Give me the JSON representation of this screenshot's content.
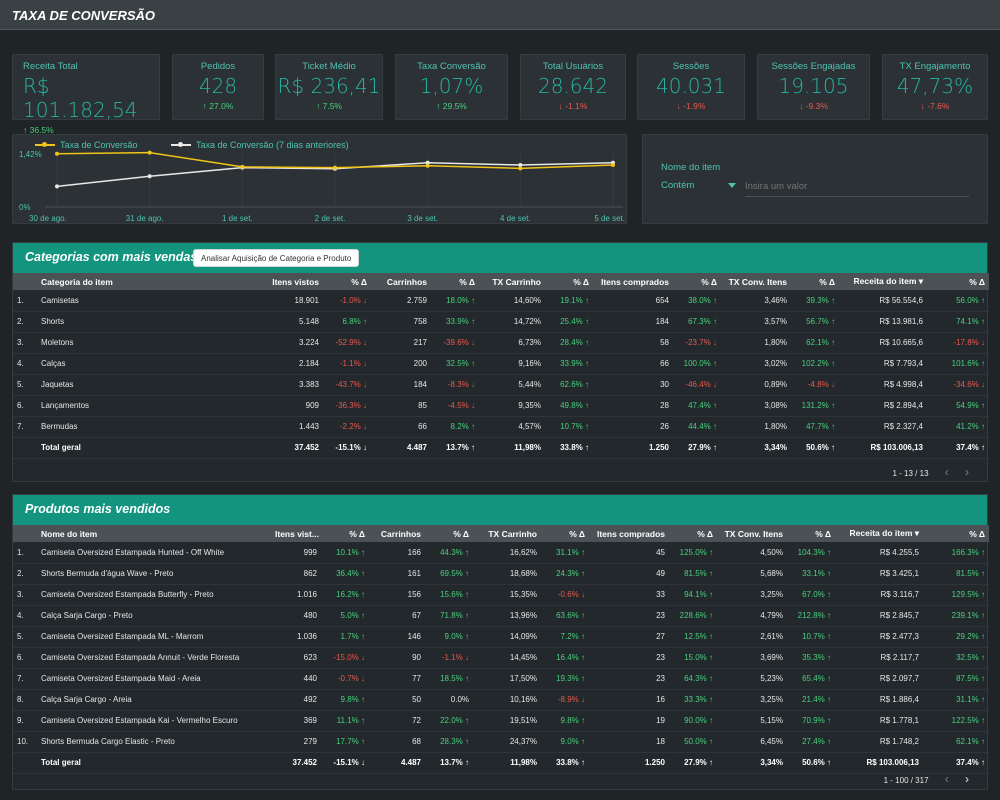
{
  "header": {
    "title": "TAXA DE CONVERSÃO"
  },
  "kpis": [
    {
      "label": "Receita Total",
      "value": "R$ 101.182,54",
      "delta": "↑ 36.5%",
      "dir": "up"
    },
    {
      "label": "Pedidos",
      "value": "428",
      "delta": "↑ 27.0%",
      "dir": "up"
    },
    {
      "label": "Ticket Médio",
      "value": "R$ 236,41",
      "delta": "↑ 7.5%",
      "dir": "up"
    },
    {
      "label": "Taxa Conversão",
      "value": "1,07%",
      "delta": "↑ 29.5%",
      "dir": "up"
    },
    {
      "label": "Total Usuários",
      "value": "28.642",
      "delta": "↓ -1.1%",
      "dir": "down"
    },
    {
      "label": "Sessões",
      "value": "40.031",
      "delta": "↓ -1.9%",
      "dir": "down"
    },
    {
      "label": "Sessões Engajadas",
      "value": "19.105",
      "delta": "↓ -9.3%",
      "dir": "down"
    },
    {
      "label": "TX Engajamento",
      "value": "47,73%",
      "delta": "↓ -7.6%",
      "dir": "down"
    }
  ],
  "chart_data": {
    "type": "line",
    "x": [
      "30 de ago.",
      "31 de ago.",
      "1 de set.",
      "2 de set.",
      "3 de set.",
      "4 de set.",
      "5 de set."
    ],
    "series": [
      {
        "name": "Taxa de Conversão",
        "color": "#f0c419",
        "values": [
          1.42,
          1.45,
          1.07,
          1.05,
          1.1,
          1.03,
          1.12
        ]
      },
      {
        "name": "Taxa de Conversão (7 dias anteriores)",
        "color": "#e8e8e8",
        "values": [
          0.55,
          0.82,
          1.05,
          1.02,
          1.18,
          1.12,
          1.18
        ]
      }
    ],
    "ytick_labels": [
      "1,42%",
      "0%"
    ],
    "ylim": [
      0,
      1.6
    ],
    "grid": true,
    "legend": "top-left"
  },
  "filter": {
    "label": "Nome do item",
    "operator": "Contém",
    "placeholder": "Insira um valor"
  },
  "categories_table": {
    "title": "Categorias com mais vendas",
    "button": "Analisar Aquisição de Categoria e Produto",
    "columns": [
      "Categoria do item",
      "Itens vistos",
      "% Δ",
      "Carrinhos",
      "% Δ",
      "TX Carrinho",
      "% Δ",
      "Itens comprados",
      "% Δ",
      "TX Conv. Itens",
      "% Δ",
      "Receita do item ▾",
      "% Δ"
    ],
    "rows": [
      {
        "n": "1.",
        "cells": [
          "Camisetas",
          "18.901",
          "-1.0% ↓",
          "2.759",
          "18.0% ↑",
          "14,60%",
          "19.1% ↑",
          "654",
          "38.0% ↑",
          "3,46%",
          "39.3% ↑",
          "R$ 56.554,6",
          "56.0% ↑"
        ]
      },
      {
        "n": "2.",
        "cells": [
          "Shorts",
          "5.148",
          "6.8% ↑",
          "758",
          "33.9% ↑",
          "14,72%",
          "25.4% ↑",
          "184",
          "67.3% ↑",
          "3,57%",
          "56.7% ↑",
          "R$ 13.981,6",
          "74.1% ↑"
        ]
      },
      {
        "n": "3.",
        "cells": [
          "Moletons",
          "3.224",
          "-52.9% ↓",
          "217",
          "-39.6% ↓",
          "6,73%",
          "28.4% ↑",
          "58",
          "-23.7% ↓",
          "1,80%",
          "62.1% ↑",
          "R$ 10.665,6",
          "-17.8% ↓"
        ]
      },
      {
        "n": "4.",
        "cells": [
          "Calças",
          "2.184",
          "-1.1% ↓",
          "200",
          "32.5% ↑",
          "9,16%",
          "33.9% ↑",
          "66",
          "100.0% ↑",
          "3,02%",
          "102.2% ↑",
          "R$ 7.793,4",
          "101.6% ↑"
        ]
      },
      {
        "n": "5.",
        "cells": [
          "Jaquetas",
          "3.383",
          "-43.7% ↓",
          "184",
          "-8.3% ↓",
          "5,44%",
          "62.6% ↑",
          "30",
          "-46.4% ↓",
          "0,89%",
          "-4.8% ↓",
          "R$ 4.998,4",
          "-34.6% ↓"
        ]
      },
      {
        "n": "6.",
        "cells": [
          "Lançamentos",
          "909",
          "-36.3% ↓",
          "85",
          "-4.5% ↓",
          "9,35%",
          "49.8% ↑",
          "28",
          "47.4% ↑",
          "3,08%",
          "131.2% ↑",
          "R$ 2.894,4",
          "54.9% ↑"
        ]
      },
      {
        "n": "7.",
        "cells": [
          "Bermudas",
          "1.443",
          "-2.2% ↓",
          "66",
          "8.2% ↑",
          "4,57%",
          "10.7% ↑",
          "26",
          "44.4% ↑",
          "1,80%",
          "47.7% ↑",
          "R$ 2.327,4",
          "41.2% ↑"
        ]
      }
    ],
    "total": [
      "Total geral",
      "37.452",
      "-15.1% ↓",
      "4.487",
      "13.7% ↑",
      "11,98%",
      "33.8% ↑",
      "1.250",
      "27.9% ↑",
      "3,34%",
      "50.6% ↑",
      "R$ 103.006,13",
      "37.4% ↑"
    ],
    "pager": "1 - 13 / 13",
    "prev": "‹",
    "next": "›"
  },
  "products_table": {
    "title": "Produtos mais vendidos",
    "columns": [
      "Nome do item",
      "Itens vist...",
      "% Δ",
      "Carrinhos",
      "% Δ",
      "TX Carrinho",
      "% Δ",
      "Itens comprados",
      "% Δ",
      "TX Conv. Itens",
      "% Δ",
      "Receita do item ▾",
      "% Δ"
    ],
    "rows": [
      {
        "n": "1.",
        "cells": [
          "Camiseta Oversized Estampada Hunted - Off White",
          "999",
          "10.1% ↑",
          "166",
          "44.3% ↑",
          "16,62%",
          "31.1% ↑",
          "45",
          "125.0% ↑",
          "4,50%",
          "104.3% ↑",
          "R$ 4.255,5",
          "166.3% ↑"
        ]
      },
      {
        "n": "2.",
        "cells": [
          "Shorts Bermuda d'água Wave - Preto",
          "862",
          "36.4% ↑",
          "161",
          "69.5% ↑",
          "18,68%",
          "24.3% ↑",
          "49",
          "81.5% ↑",
          "5,68%",
          "33.1% ↑",
          "R$ 3.425,1",
          "81.5% ↑"
        ]
      },
      {
        "n": "3.",
        "cells": [
          "Camiseta Oversized Estampada Butterfly - Preto",
          "1.016",
          "16.2% ↑",
          "156",
          "15.6% ↑",
          "15,35%",
          "-0.6% ↓",
          "33",
          "94.1% ↑",
          "3,25%",
          "67.0% ↑",
          "R$ 3.116,7",
          "129.5% ↑"
        ]
      },
      {
        "n": "4.",
        "cells": [
          "Calça Sarja Cargo - Preto",
          "480",
          "5.0% ↑",
          "67",
          "71.8% ↑",
          "13,96%",
          "63.6% ↑",
          "23",
          "228.6% ↑",
          "4,79%",
          "212.8% ↑",
          "R$ 2.845,7",
          "239.1% ↑"
        ]
      },
      {
        "n": "5.",
        "cells": [
          "Camiseta Oversized Estampada ML - Marrom",
          "1.036",
          "1.7% ↑",
          "146",
          "9.0% ↑",
          "14,09%",
          "7.2% ↑",
          "27",
          "12.5% ↑",
          "2,61%",
          "10.7% ↑",
          "R$ 2.477,3",
          "29.2% ↑"
        ]
      },
      {
        "n": "6.",
        "cells": [
          "Camiseta Oversized Estampada Annuit - Verde Floresta",
          "623",
          "-15.0% ↓",
          "90",
          "-1.1% ↓",
          "14,45%",
          "16.4% ↑",
          "23",
          "15.0% ↑",
          "3,69%",
          "35.3% ↑",
          "R$ 2.117,7",
          "32.5% ↑"
        ]
      },
      {
        "n": "7.",
        "cells": [
          "Camiseta Oversized Estampada Maid - Areia",
          "440",
          "-0.7% ↓",
          "77",
          "18.5% ↑",
          "17,50%",
          "19.3% ↑",
          "23",
          "64.3% ↑",
          "5,23%",
          "65.4% ↑",
          "R$ 2.097,7",
          "87.5% ↑"
        ]
      },
      {
        "n": "8.",
        "cells": [
          "Calça Sarja Cargo - Areia",
          "492",
          "9.8% ↑",
          "50",
          "0.0%",
          "10,16%",
          "-8.9% ↓",
          "16",
          "33.3% ↑",
          "3,25%",
          "21.4% ↑",
          "R$ 1.886,4",
          "31.1% ↑"
        ]
      },
      {
        "n": "9.",
        "cells": [
          "Camiseta Oversized Estampada Kai - Vermelho Escuro",
          "369",
          "11.1% ↑",
          "72",
          "22.0% ↑",
          "19,51%",
          "9.8% ↑",
          "19",
          "90.0% ↑",
          "5,15%",
          "70.9% ↑",
          "R$ 1.778,1",
          "122.5% ↑"
        ]
      },
      {
        "n": "10.",
        "cells": [
          "Shorts Bermuda Cargo Elastic - Preto",
          "279",
          "17.7% ↑",
          "68",
          "28.3% ↑",
          "24,37%",
          "9.0% ↑",
          "18",
          "50.0% ↑",
          "6,45%",
          "27.4% ↑",
          "R$ 1.748,2",
          "62.1% ↑"
        ]
      }
    ],
    "total": [
      "Total geral",
      "37.452",
      "-15.1% ↓",
      "4.487",
      "13.7% ↑",
      "11,98%",
      "33.8% ↑",
      "1.250",
      "27.9% ↑",
      "3,34%",
      "50.6% ↑",
      "R$ 103.006,13",
      "37.4% ↑"
    ],
    "pager": "1 - 100 / 317",
    "prev": "‹",
    "next": "›"
  }
}
